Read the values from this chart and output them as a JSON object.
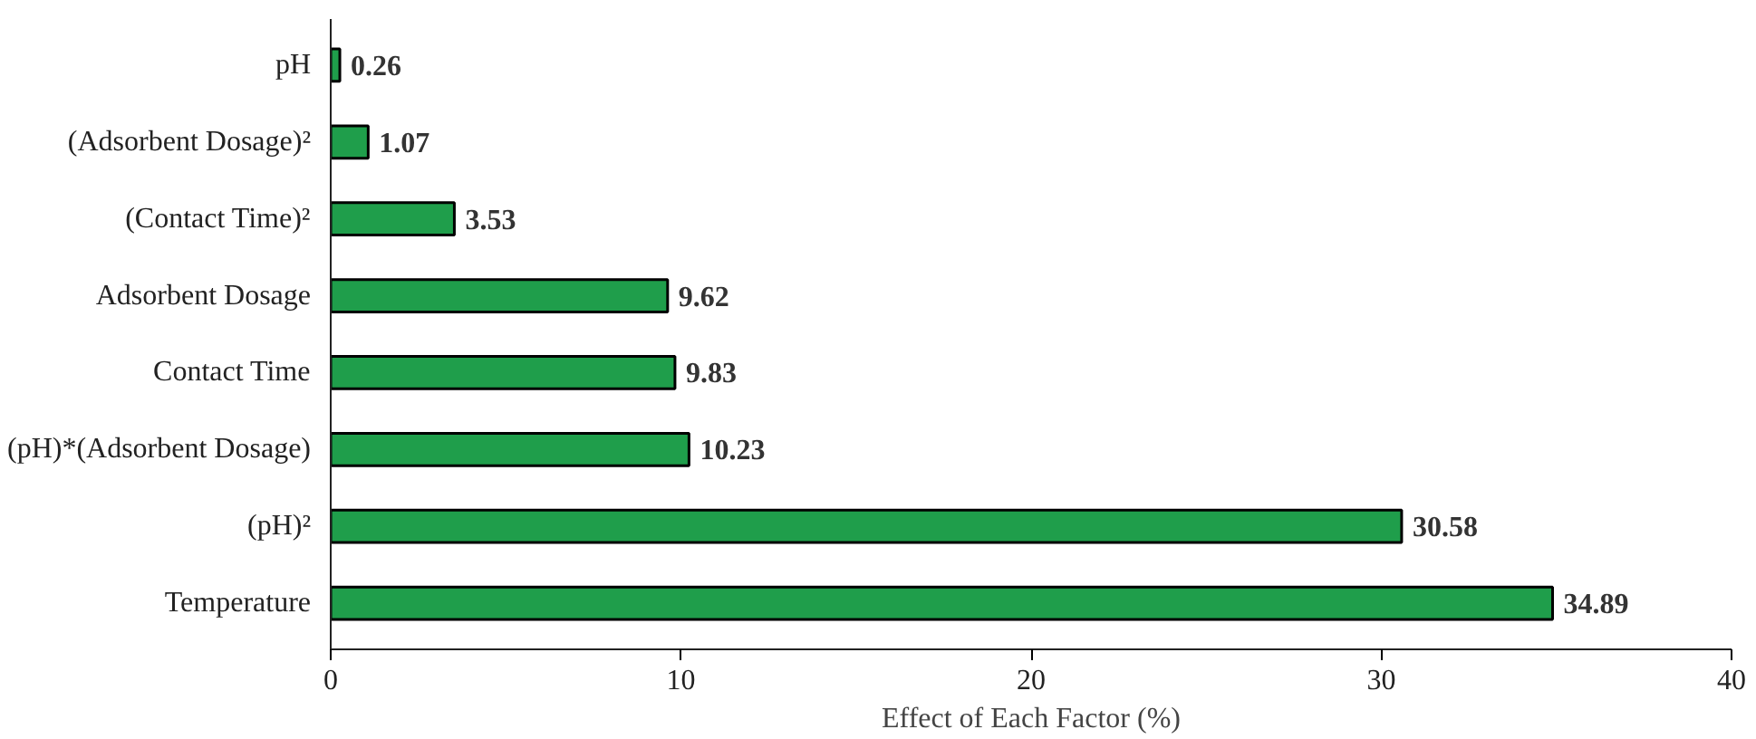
{
  "chart_data": {
    "type": "bar",
    "orientation": "horizontal",
    "xlabel": "Effect of Each Factor (%)",
    "categories": [
      "pH",
      "(Adsorbent Dosage)²",
      "(Contact Time)²",
      "Adsorbent Dosage",
      "Contact Time",
      "(pH)*(Adsorbent Dosage)",
      "(pH)²",
      "Temperature"
    ],
    "values": [
      0.26,
      1.07,
      3.53,
      9.62,
      9.83,
      10.23,
      30.58,
      34.89
    ],
    "color": "#1f9e4b",
    "xlim": [
      0,
      40
    ],
    "xticks": [
      0,
      10,
      20,
      30,
      40
    ],
    "data_labels": true,
    "grid": false
  }
}
